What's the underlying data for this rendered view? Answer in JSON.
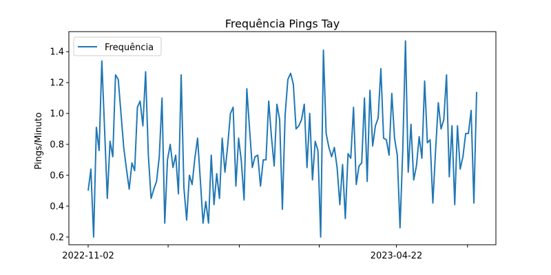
{
  "chart_data": {
    "type": "line",
    "title": "Frequência Pings Tay",
    "xlabel": "",
    "ylabel": "Pings/Minuto",
    "x_tick_labels": [
      "2022-11-02",
      "",
      "",
      "",
      "2023-04-22",
      ""
    ],
    "y_ticks": [
      0.2,
      0.4,
      0.6,
      0.8,
      1.0,
      1.2,
      1.4
    ],
    "y_tick_labels": [
      "0.2",
      "0.4",
      "0.6",
      "0.8",
      "1.0",
      "1.2",
      "1.4"
    ],
    "ylim": [
      0.15,
      1.53
    ],
    "legend_position": "top-left",
    "grid": false,
    "colors": {
      "series": "#1f77b4"
    },
    "series": [
      {
        "name": "Frequência",
        "values": [
          0.5,
          0.64,
          0.2,
          0.91,
          0.76,
          1.34,
          0.9,
          0.45,
          0.82,
          0.72,
          1.25,
          1.22,
          1.0,
          0.78,
          0.64,
          0.51,
          0.68,
          0.63,
          1.04,
          1.08,
          0.92,
          1.27,
          0.73,
          0.45,
          0.51,
          0.56,
          0.72,
          1.1,
          0.29,
          0.7,
          0.8,
          0.65,
          0.73,
          0.48,
          1.25,
          0.52,
          0.31,
          0.6,
          0.54,
          0.71,
          0.84,
          0.57,
          0.29,
          0.43,
          0.29,
          0.73,
          0.41,
          0.61,
          0.45,
          0.84,
          0.62,
          0.79,
          1.0,
          1.04,
          0.53,
          0.84,
          0.69,
          0.44,
          1.16,
          0.9,
          0.65,
          0.72,
          0.73,
          0.53,
          0.7,
          0.7,
          1.08,
          0.85,
          0.66,
          1.06,
          0.96,
          0.38,
          0.99,
          1.22,
          1.26,
          1.19,
          0.9,
          0.92,
          0.96,
          1.06,
          0.65,
          1.0,
          0.57,
          0.82,
          0.76,
          0.2,
          1.41,
          0.87,
          0.78,
          0.72,
          0.78,
          0.65,
          0.41,
          0.67,
          0.32,
          0.74,
          0.71,
          1.04,
          0.54,
          0.66,
          0.68,
          1.1,
          0.56,
          1.15,
          0.79,
          0.92,
          0.97,
          1.29,
          0.84,
          0.83,
          0.73,
          1.13,
          0.84,
          0.73,
          0.26,
          0.76,
          1.47,
          0.62,
          0.93,
          0.57,
          0.66,
          0.85,
          0.71,
          1.21,
          0.81,
          0.83,
          0.42,
          0.76,
          1.07,
          0.9,
          0.96,
          1.25,
          0.59,
          0.92,
          0.41,
          0.92,
          0.64,
          0.72,
          0.87,
          0.87,
          1.02,
          0.42,
          1.14
        ]
      }
    ]
  }
}
